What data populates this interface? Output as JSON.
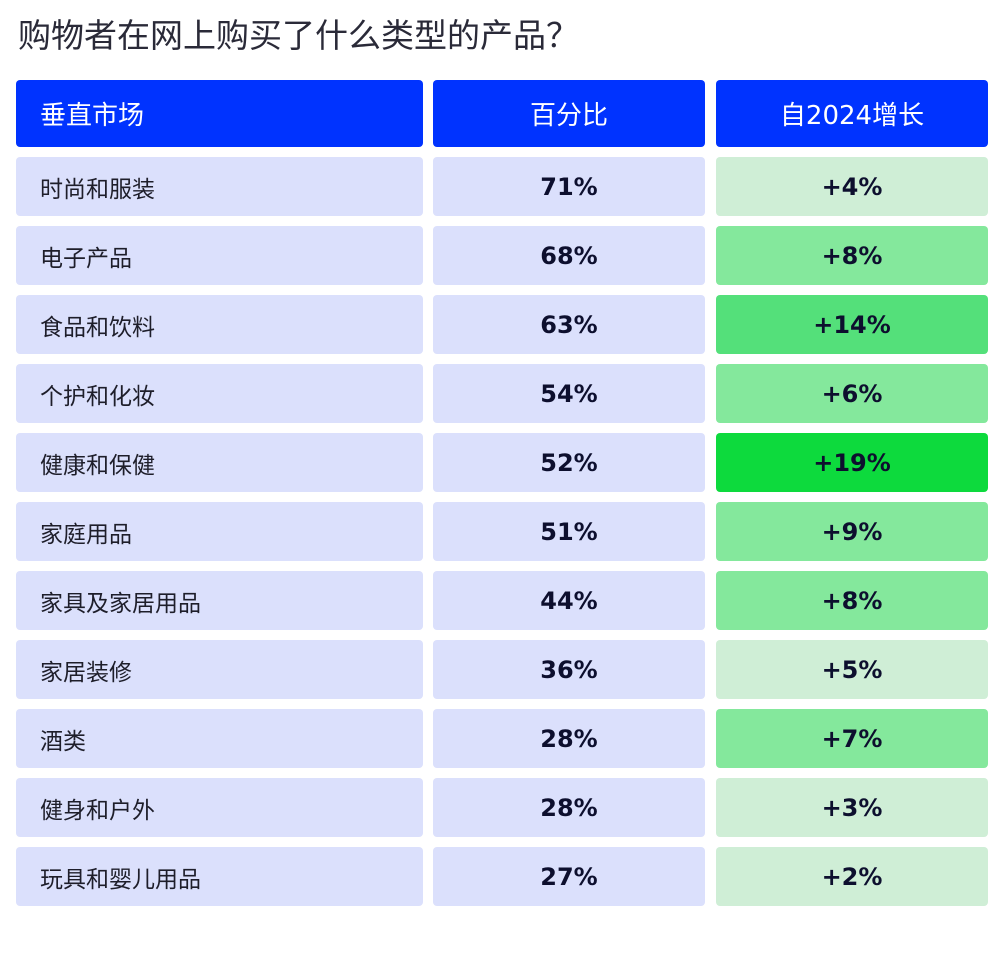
{
  "title": "购物者在网上购买了什么类型的产品？",
  "colors": {
    "header": "#0033ff",
    "category_cell": "#dbe0fc",
    "growth_levels": {
      "low": "#cfeed6",
      "medium": "#84e89c",
      "high": "#54e07a",
      "highest": "#0dda3d"
    }
  },
  "chart_data": {
    "type": "table",
    "columns": [
      "垂直市场",
      "百分比",
      "自2024增长"
    ],
    "rows": [
      {
        "category": "时尚和服装",
        "percent": "71%",
        "growth": "+4%",
        "growth_value": 4,
        "level": "low"
      },
      {
        "category": "电子产品",
        "percent": "68%",
        "growth": "+8%",
        "growth_value": 8,
        "level": "medium"
      },
      {
        "category": "食品和饮料",
        "percent": "63%",
        "growth": "+14%",
        "growth_value": 14,
        "level": "high"
      },
      {
        "category": "个护和化妆",
        "percent": "54%",
        "growth": "+6%",
        "growth_value": 6,
        "level": "medium"
      },
      {
        "category": "健康和保健",
        "percent": "52%",
        "growth": "+19%",
        "growth_value": 19,
        "level": "highest"
      },
      {
        "category": "家庭用品",
        "percent": "51%",
        "growth": "+9%",
        "growth_value": 9,
        "level": "medium"
      },
      {
        "category": "家具及家居用品",
        "percent": "44%",
        "growth": "+8%",
        "growth_value": 8,
        "level": "medium"
      },
      {
        "category": "家居装修",
        "percent": "36%",
        "growth": "+5%",
        "growth_value": 5,
        "level": "low"
      },
      {
        "category": "酒类",
        "percent": "28%",
        "growth": "+7%",
        "growth_value": 7,
        "level": "medium"
      },
      {
        "category": "健身和户外",
        "percent": "28%",
        "growth": "+3%",
        "growth_value": 3,
        "level": "low"
      },
      {
        "category": "玩具和婴儿用品",
        "percent": "27%",
        "growth": "+2%",
        "growth_value": 2,
        "level": "low"
      }
    ]
  }
}
